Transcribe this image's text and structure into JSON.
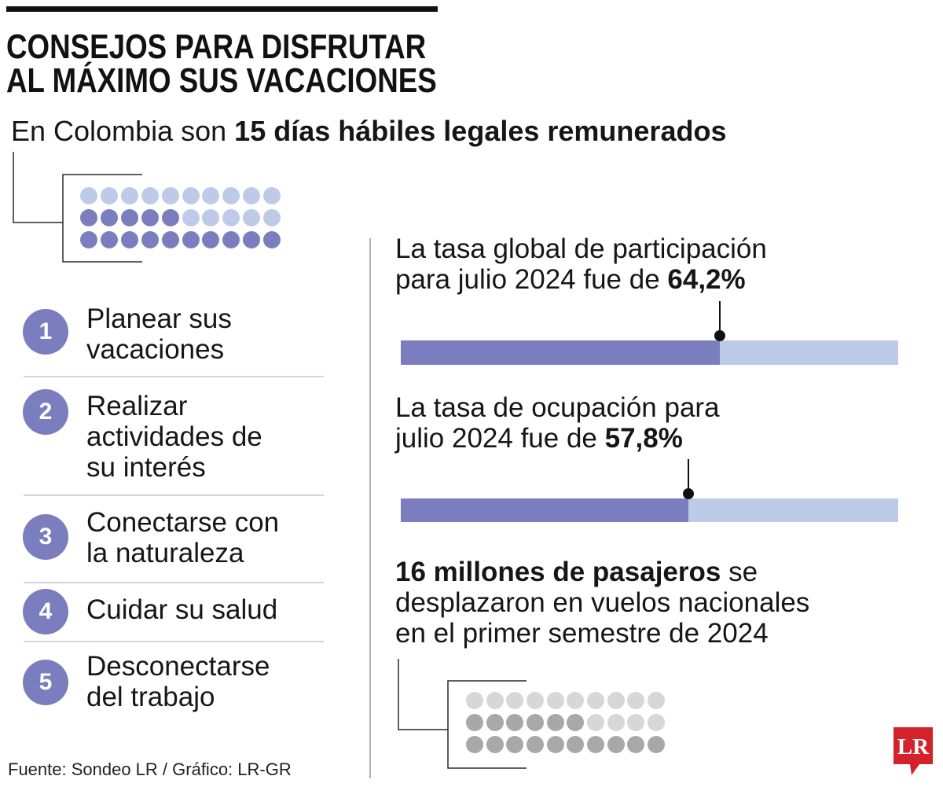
{
  "header": {
    "title_lines": [
      "CONSEJOS PARA DISFRUTAR",
      "AL MÁXIMO SUS VACACIONES"
    ]
  },
  "intro": {
    "lead": "En Colombia son",
    "highlight": "15 días hábiles legales remunerados"
  },
  "days_waffle": {
    "total": 30,
    "filled": 15
  },
  "tips": [
    {
      "number": "1",
      "lines": [
        "Planear sus",
        "vacaciones"
      ]
    },
    {
      "number": "2",
      "lines": [
        "Realizar",
        "actividades de",
        "su interés"
      ]
    },
    {
      "number": "3",
      "lines": [
        "Conectarse con",
        "la naturaleza"
      ]
    },
    {
      "number": "4",
      "lines": [
        "Cuidar su salud"
      ]
    },
    {
      "number": "5",
      "lines": [
        "Desconectarse",
        "del trabajo"
      ]
    }
  ],
  "chart_data": {
    "type": "bar",
    "xlim": [
      0,
      100
    ],
    "series": [
      {
        "lines": [
          "La tasa global de participación",
          "para julio 2024 fue de"
        ],
        "value_label": "64,2%",
        "value": 64.2
      },
      {
        "lines": [
          "La tasa de ocupación para",
          "julio 2024 fue de"
        ],
        "value_label": "57,8%",
        "value": 57.8
      }
    ]
  },
  "passengers": {
    "highlight": "16 millones de pasajeros",
    "lines": [
      "se",
      "desplazaron en vuelos nacionales",
      "en el primer semestre de 2024"
    ]
  },
  "passengers_waffle": {
    "total": 30,
    "filled": 16
  },
  "footer": {
    "source": "Fuente: Sondeo LR / Gráfico: LR-GR"
  },
  "logo": {
    "text": "LR"
  },
  "colors": {
    "accent": "#7b7ebe",
    "accent_light": "#bdcbe9",
    "gray_dark": "#a8a8a8",
    "gray_light": "#d7d7d7",
    "ink": "#161616",
    "logo_red": "#d3222a"
  }
}
